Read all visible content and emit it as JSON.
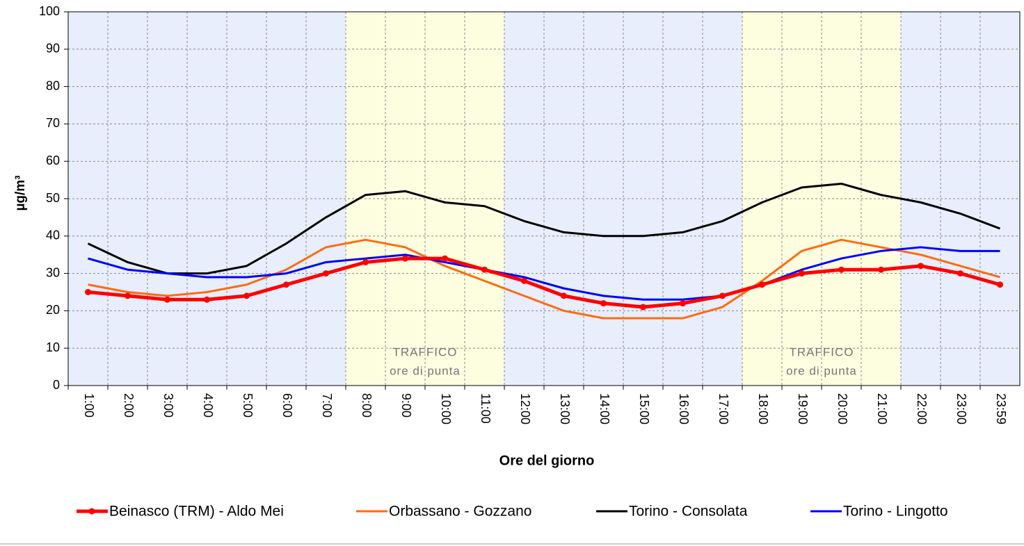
{
  "chart_data": {
    "type": "line",
    "x_label": "Ore del giorno",
    "y_label": "µg/m³",
    "categories": [
      "1:00",
      "2:00",
      "3:00",
      "4:00",
      "5:00",
      "6:00",
      "7:00",
      "8:00",
      "9:00",
      "10:00",
      "11:00",
      "12:00",
      "13:00",
      "14:00",
      "15:00",
      "16:00",
      "17:00",
      "18:00",
      "19:00",
      "20:00",
      "21:00",
      "22:00",
      "23:00",
      "23:59"
    ],
    "series": [
      {
        "name": "Beinasco (TRM) - Aldo Mei",
        "color": "#ff0000",
        "markers": true,
        "values": [
          25,
          24,
          23,
          23,
          24,
          27,
          30,
          33,
          34,
          34,
          31,
          28,
          24,
          22,
          21,
          22,
          24,
          27,
          30,
          31,
          31,
          32,
          30,
          27
        ]
      },
      {
        "name": "Orbassano - Gozzano",
        "color": "#ff6a10",
        "markers": false,
        "values": [
          27,
          25,
          24,
          25,
          27,
          31,
          37,
          39,
          37,
          32,
          28,
          24,
          20,
          18,
          18,
          18,
          21,
          28,
          36,
          39,
          37,
          35,
          32,
          29
        ]
      },
      {
        "name": "Torino - Consolata",
        "color": "#000000",
        "markers": false,
        "values": [
          38,
          33,
          30,
          30,
          32,
          38,
          45,
          51,
          52,
          49,
          48,
          44,
          41,
          40,
          40,
          41,
          44,
          49,
          53,
          54,
          51,
          49,
          46,
          42
        ]
      },
      {
        "name": "Torino - Lingotto",
        "color": "#0000ff",
        "markers": false,
        "values": [
          34,
          31,
          30,
          29,
          29,
          30,
          33,
          34,
          35,
          33,
          31,
          29,
          26,
          24,
          23,
          23,
          24,
          27,
          31,
          34,
          36,
          37,
          36,
          36
        ]
      }
    ],
    "annotations": [
      {
        "text": "TRAFFICO",
        "subtext": "ore di punta"
      },
      {
        "text": "TRAFFICO",
        "subtext": "ore di punta"
      }
    ],
    "ylim": [
      0,
      100
    ],
    "yticks": [
      0,
      10,
      20,
      30,
      40,
      50,
      60,
      70,
      80,
      90,
      100
    ],
    "grid": true
  }
}
